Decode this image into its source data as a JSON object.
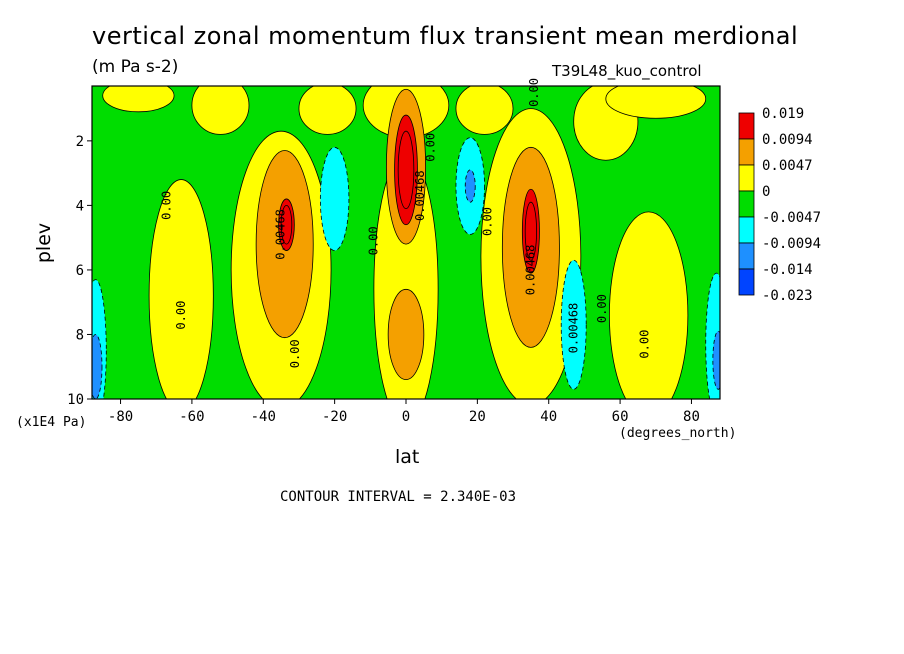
{
  "figure": {
    "title": "vertical zonal momentum flux transient mean merdional",
    "units": "(m Pa s-2)",
    "run_label": "T39L48_kuo_control",
    "contour_interval": "CONTOUR INTERVAL = 2.340E-03"
  },
  "chart_data": {
    "type": "heatmap",
    "xlabel": "lat",
    "ylabel": "plev",
    "x_units": "(degrees_north)",
    "y_units": "(x1E4 Pa)",
    "xlim": [
      -88,
      88
    ],
    "ylim": [
      10,
      0.3
    ],
    "x_ticks": [
      -80,
      -60,
      -40,
      -20,
      0,
      20,
      40,
      60,
      80
    ],
    "y_ticks": [
      2,
      4,
      6,
      8,
      10
    ],
    "colorbar": {
      "labels": [
        "0.019",
        "0.0094",
        "0.0047",
        "0",
        "-0.0047",
        "-0.0094",
        "-0.014",
        "-0.023"
      ],
      "colors": [
        "#ee0000",
        "#f4a000",
        "#ffff00",
        "#00dd00",
        "#00ffff",
        "#1e90ff",
        "#0044ff"
      ]
    },
    "contour_labels": [
      {
        "text": "0.00",
        "x": -66,
        "y": 4.0
      },
      {
        "text": "0.00",
        "x": -62,
        "y": 7.4
      },
      {
        "text": "0.00468",
        "x": -34,
        "y": 4.9
      },
      {
        "text": "0.00",
        "x": -30,
        "y": 8.6
      },
      {
        "text": "0.00",
        "x": -8,
        "y": 5.1
      },
      {
        "text": "0.00468",
        "x": 5,
        "y": 3.7
      },
      {
        "text": "0.00",
        "x": 8,
        "y": 2.2
      },
      {
        "text": "0.00",
        "x": 24,
        "y": 4.5
      },
      {
        "text": "0.00468",
        "x": 36,
        "y": 6.0
      },
      {
        "text": "0.00",
        "x": 37,
        "y": 0.5
      },
      {
        "text": "0.00468",
        "x": 48,
        "y": 7.8
      },
      {
        "text": "0.00",
        "x": 56,
        "y": 7.2
      },
      {
        "text": "0.00",
        "x": 68,
        "y": 8.3
      }
    ],
    "features": [
      {
        "kind": "maximum",
        "value_level": "0.019",
        "x": 0,
        "y": 3.0
      },
      {
        "kind": "maximum",
        "value_level": "0.019",
        "x": -34,
        "y": 4.6
      },
      {
        "kind": "maximum",
        "value_level": "0.019",
        "x": 35,
        "y": 4.8
      },
      {
        "kind": "maximum",
        "value_level": "0.0094",
        "x": 0,
        "y": 8.0
      },
      {
        "kind": "minimum",
        "value_level": "-0.0094",
        "x": -20,
        "y": 3.8
      },
      {
        "kind": "minimum",
        "value_level": "-0.0094",
        "x": 18,
        "y": 3.4
      },
      {
        "kind": "minimum",
        "value_level": "-0.0094",
        "x": 47,
        "y": 7.7
      },
      {
        "kind": "minimum",
        "value_level": "-0.014",
        "x": -86,
        "y": 8.5
      },
      {
        "kind": "minimum",
        "value_level": "-0.0094",
        "x": 86,
        "y": 8.3
      }
    ]
  }
}
